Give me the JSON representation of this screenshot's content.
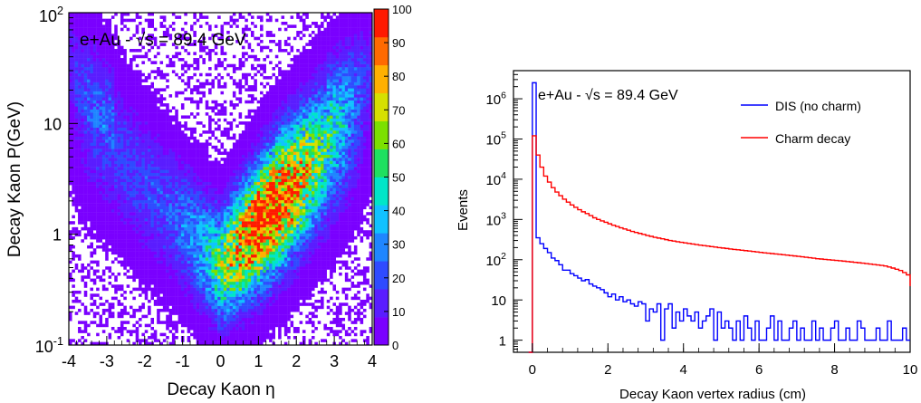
{
  "chart_data": [
    {
      "type": "heatmap",
      "annotation": "e+Au - √s = 89.4 GeV",
      "xlabel": "Decay Kaon η",
      "ylabel": "Decay Kaon P(GeV)",
      "xlim": [
        -4,
        4
      ],
      "ylim": [
        0.1,
        100
      ],
      "y_scale": "log",
      "x_ticks": [
        "-4",
        "-3",
        "-2",
        "-1",
        "0",
        "1",
        "2",
        "3",
        "4"
      ],
      "y_ticks": [
        {
          "label": "1",
          "sup": "",
          "value": 1
        },
        {
          "label": "10",
          "sup": "",
          "value": 10
        }
      ],
      "y_tick_min": {
        "base": "10",
        "sup": "-1"
      },
      "y_tick_max": {
        "base": "10",
        "sup": "2"
      },
      "colorbar": {
        "min": 0,
        "max": 100,
        "ticks": [
          "0",
          "10",
          "20",
          "30",
          "40",
          "50",
          "60",
          "70",
          "80",
          "90",
          "100"
        ],
        "colors": [
          "#7a00ff",
          "#5a1dff",
          "#2f4bff",
          "#1f86ff",
          "#11c2ff",
          "#00e6c8",
          "#1fe060",
          "#7ce000",
          "#d6e000",
          "#ffb000",
          "#ff6a00",
          "#ff1a00"
        ]
      },
      "distribution": {
        "shape": "V-shaped band",
        "min_eta": 0,
        "min_p": 0.5,
        "peak_eta": 1.3,
        "peak_p": 1.5,
        "peak_counts": 100
      }
    },
    {
      "type": "line",
      "annotation": "e+Au - √s = 89.4 GeV",
      "xlabel": "Decay Kaon vertex radius (cm)",
      "ylabel": "Events",
      "xlim": [
        -0.5,
        10
      ],
      "ylim": [
        0.5,
        5000000
      ],
      "y_scale": "log",
      "x_ticks": [
        "0",
        "2",
        "4",
        "6",
        "8",
        "10"
      ],
      "y_ticks": [
        {
          "label": "1",
          "sup": "",
          "value": 1
        },
        {
          "label": "10",
          "sup": "",
          "value": 10
        },
        {
          "label": "10",
          "sup": "2",
          "value": 100
        },
        {
          "label": "10",
          "sup": "3",
          "value": 1000
        },
        {
          "label": "10",
          "sup": "4",
          "value": 10000
        },
        {
          "label": "10",
          "sup": "5",
          "value": 100000
        },
        {
          "label": "10",
          "sup": "6",
          "value": 1000000
        }
      ],
      "legend_position": "top-right",
      "series": [
        {
          "name": "DIS (no charm)",
          "color": "#0000ff",
          "bin_width": 0.1,
          "x_start": -0.1,
          "values": [
            0,
            2500000,
            350,
            250,
            190,
            150,
            110,
            95,
            75,
            55,
            55,
            45,
            40,
            35,
            30,
            32,
            25,
            22,
            20,
            18,
            15,
            12,
            14,
            10,
            12,
            9,
            10,
            8,
            7,
            9,
            8,
            3,
            6,
            5,
            8,
            1,
            6,
            8,
            2,
            5,
            3,
            6,
            4,
            3,
            5,
            2,
            3,
            4,
            6,
            1,
            5,
            2,
            3,
            2,
            1,
            3,
            1,
            4,
            2,
            1,
            3,
            1,
            1,
            2,
            4,
            1,
            3,
            1,
            1,
            2,
            3,
            1,
            2,
            1,
            1,
            3,
            1,
            2,
            1,
            1,
            2,
            3,
            1,
            1,
            2,
            1,
            1,
            3,
            2,
            1,
            1,
            1,
            2,
            1,
            1,
            3,
            1,
            1,
            1,
            2,
            1,
            1
          ]
        },
        {
          "name": "Charm decay",
          "color": "#ff0000",
          "bin_width": 0.1,
          "x_start": -0.1,
          "values": [
            0,
            120000,
            40000,
            20000,
            12000,
            8500,
            6200,
            4800,
            3900,
            3200,
            2700,
            2300,
            2000,
            1750,
            1550,
            1400,
            1250,
            1100,
            1000,
            920,
            850,
            780,
            720,
            670,
            620,
            580,
            540,
            505,
            475,
            450,
            425,
            400,
            380,
            360,
            345,
            330,
            315,
            300,
            290,
            280,
            270,
            262,
            254,
            246,
            238,
            230,
            224,
            218,
            212,
            206,
            200,
            195,
            190,
            185,
            180,
            176,
            172,
            168,
            164,
            160,
            156,
            152,
            148,
            145,
            142,
            139,
            136,
            133,
            130,
            127,
            124,
            121,
            118,
            115,
            112,
            109,
            106,
            104,
            102,
            100,
            98,
            96,
            94,
            92,
            90,
            88,
            86,
            84,
            82,
            80,
            78,
            76,
            74,
            72,
            70,
            66,
            62,
            58,
            54,
            48,
            42,
            38,
            32,
            28,
            25,
            22
          ]
        }
      ]
    }
  ]
}
